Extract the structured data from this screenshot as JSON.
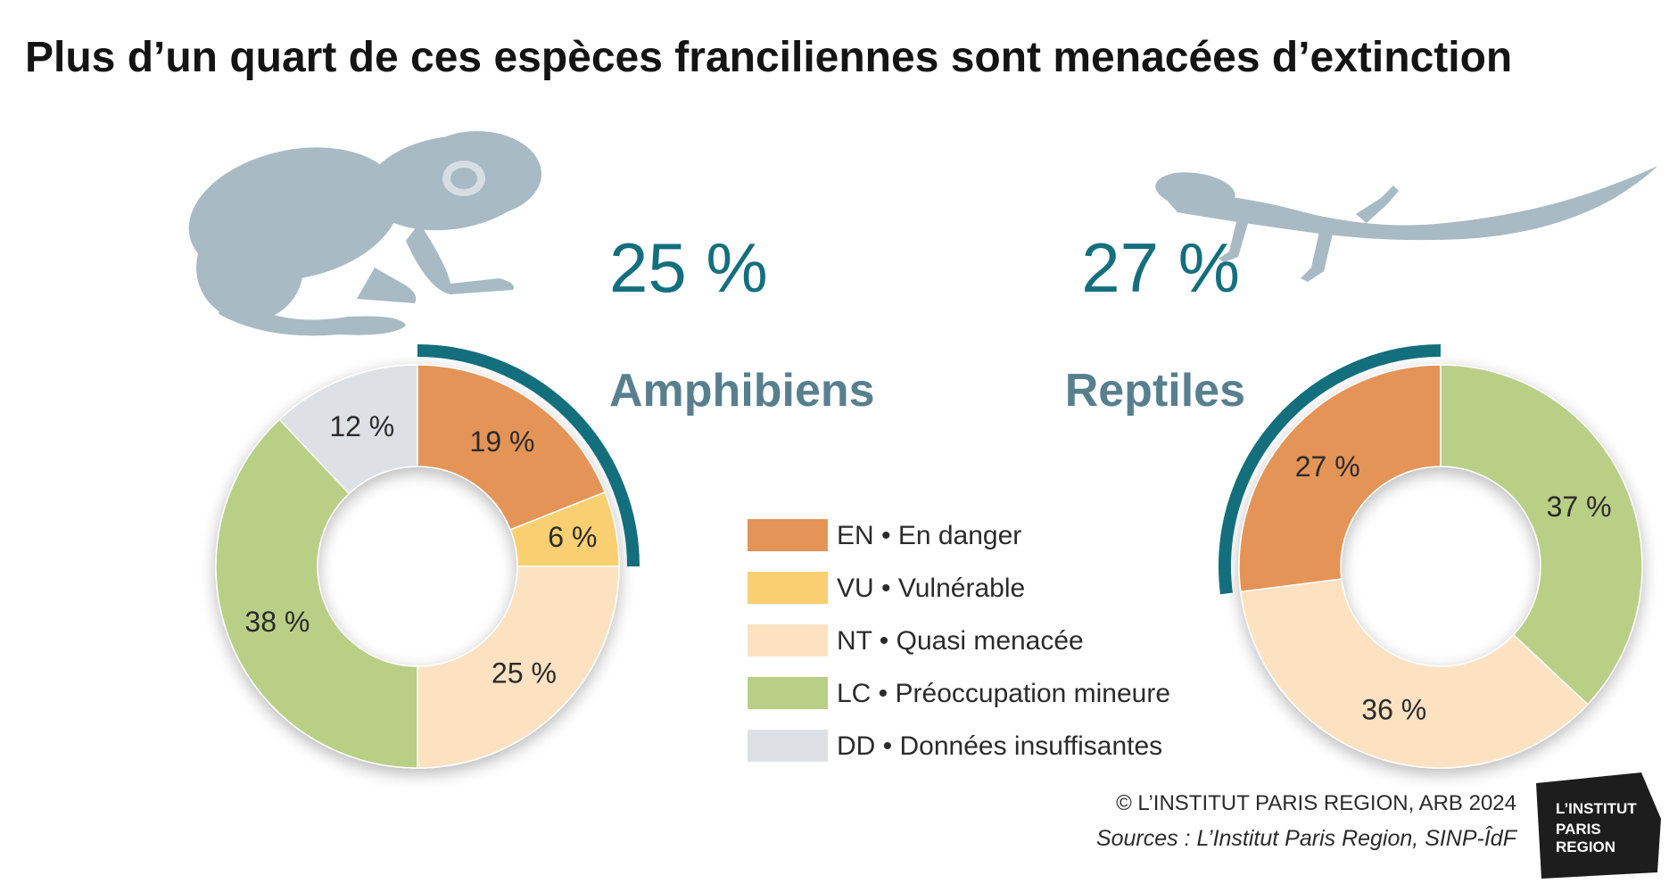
{
  "title": "Plus d’un quart de ces espèces franciliennes sont menacées d’extinction",
  "colors": {
    "EN": "#e49456",
    "VU": "#f9cf72",
    "NT": "#fde2c2",
    "LC": "#b9cf86",
    "DD": "#dde1e5",
    "accent": "#146f7d",
    "groupName": "#587f8e",
    "silhouette": "#a8bac4"
  },
  "chart_data": [
    {
      "type": "pie",
      "name": "Amphibiens",
      "threatened_share": "25 %",
      "icon": "frog-icon",
      "slices": [
        {
          "code": "EN",
          "value": 19,
          "label": "19 %"
        },
        {
          "code": "VU",
          "value": 6,
          "label": "6 %"
        },
        {
          "code": "NT",
          "value": 25,
          "label": "25 %"
        },
        {
          "code": "LC",
          "value": 38,
          "label": "38 %"
        },
        {
          "code": "DD",
          "value": 12,
          "label": "12 %"
        }
      ]
    },
    {
      "type": "pie",
      "name": "Reptiles",
      "threatened_share": "27 %",
      "icon": "lizard-icon",
      "slices": [
        {
          "code": "LC",
          "value": 37,
          "label": "37 %"
        },
        {
          "code": "NT",
          "value": 36,
          "label": "36 %"
        },
        {
          "code": "EN",
          "value": 27,
          "label": "27 %"
        }
      ]
    }
  ],
  "legend": [
    {
      "code": "EN",
      "text": "EN • En danger"
    },
    {
      "code": "VU",
      "text": "VU • Vulnérable"
    },
    {
      "code": "NT",
      "text": "NT • Quasi menacée"
    },
    {
      "code": "LC",
      "text": "LC • Préoccupation mineure"
    },
    {
      "code": "DD",
      "text": "DD • Données insuffisantes"
    }
  ],
  "footer": {
    "copyright": "© L’INSTITUT PARIS REGION, ARB 2024",
    "sources": "Sources : L’Institut Paris Region, SINP-ÎdF"
  },
  "logo": {
    "line1": "L’INSTITUT",
    "line2": "PARIS",
    "line3": "REGION"
  }
}
